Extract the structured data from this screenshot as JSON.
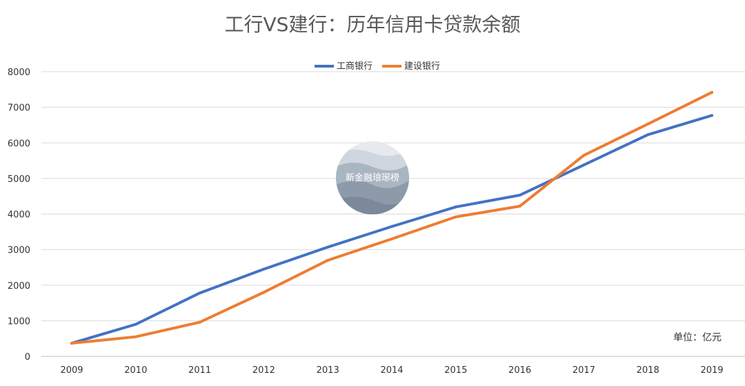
{
  "chart_data": {
    "type": "line",
    "title": "工行VS建行：历年信用卡贷款余额",
    "unit_note": "单位：亿元",
    "categories": [
      "2009",
      "2010",
      "2011",
      "2012",
      "2013",
      "2014",
      "2015",
      "2016",
      "2017",
      "2018",
      "2019"
    ],
    "series": [
      {
        "name": "工商银行",
        "color": "#4472C4",
        "values": [
          370,
          900,
          1780,
          2450,
          3070,
          3650,
          4200,
          4530,
          5380,
          6230,
          6770
        ]
      },
      {
        "name": "建设银行",
        "color": "#ED7D31",
        "values": [
          370,
          550,
          960,
          1800,
          2700,
          3300,
          3920,
          4220,
          5650,
          6530,
          7420
        ]
      }
    ],
    "ylim": [
      0,
      8000
    ],
    "yticks": [
      0,
      1000,
      2000,
      3000,
      4000,
      5000,
      6000,
      7000,
      8000
    ],
    "grid": true,
    "legend_position": "top-center",
    "watermark": "新金融琅琊榜"
  }
}
